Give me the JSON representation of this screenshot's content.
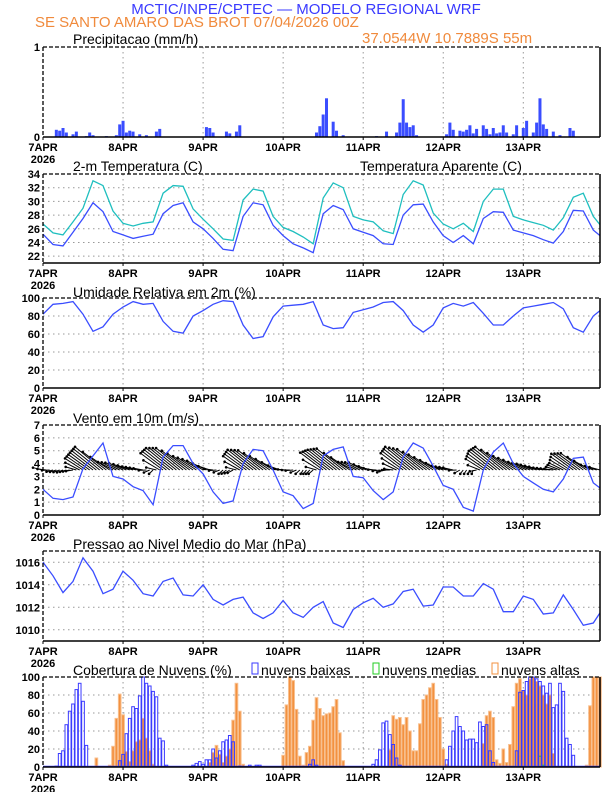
{
  "header": {
    "title": "MCTIC/INPE/CPTEC — MODELO REGIONAL WRF",
    "location": "SE SANTO AMARO DAS BROT   07/04/2026 00Z",
    "coords": "37.0544W 10.7889S 55m"
  },
  "colors": {
    "title": "#3a3aff",
    "location": "#f08a3c",
    "line": "#3a4dff",
    "apparent": "#1fbfbf",
    "low": "#3a3aff",
    "medium": "#22cc22",
    "high": "#f3913f",
    "vector": "#000000"
  },
  "x_tick_labels": [
    "7APR",
    "8APR",
    "9APR",
    "10APR",
    "11APR",
    "12APR",
    "13APR"
  ],
  "x_year_label": "2026",
  "x_range": [
    "07APR00Z",
    "13APR23Z"
  ],
  "legend": {
    "low": "nuvens baixas",
    "medium": "nuvens medias",
    "high": "nuvens altas"
  },
  "chart_data": [
    {
      "type": "bar",
      "title": "Precipitacao (mm/h)",
      "ylim": [
        0,
        1
      ],
      "yticks": [
        0,
        1
      ],
      "grid": true,
      "hourly": {
        "07APR": [
          0,
          0,
          0,
          0,
          0.08,
          0.07,
          0.1,
          0.05,
          0,
          0.03,
          0.06,
          0,
          0,
          0.01,
          0.05,
          0.02,
          0,
          0,
          0,
          0.01,
          0,
          0,
          0.02,
          0.14
        ],
        "08APR": [
          0.18,
          0.05,
          0.07,
          0.06,
          0,
          0.03,
          0,
          0.02,
          0,
          0,
          0.06,
          0.09,
          0,
          0,
          0,
          0,
          0,
          0,
          0,
          0,
          0,
          0,
          0,
          0
        ],
        "09APR": [
          0,
          0.11,
          0.1,
          0.05,
          0,
          0,
          0,
          0.06,
          0.04,
          0,
          0.06,
          0.13,
          0,
          0,
          0,
          0,
          0,
          0,
          0,
          0,
          0,
          0,
          0,
          0
        ],
        "10APR": [
          0,
          0,
          0,
          0,
          0,
          0,
          0,
          0,
          0,
          0,
          0.05,
          0.12,
          0.25,
          0.43,
          0,
          0.17,
          0.07,
          0,
          0.02,
          0,
          0,
          0,
          0,
          0
        ],
        "11APR": [
          0,
          0,
          0,
          0,
          0.01,
          0,
          0,
          0.06,
          0,
          0,
          0.05,
          0.16,
          0.42,
          0.16,
          0.11,
          0.13,
          0.02,
          0,
          0,
          0,
          0,
          0,
          0,
          0
        ],
        "12APR": [
          0,
          0.03,
          0.16,
          0.08,
          0,
          0.07,
          0.06,
          0.08,
          0.13,
          0.04,
          0.09,
          0,
          0.13,
          0.09,
          0.03,
          0.1,
          0.04,
          0.05,
          0.13,
          0.05,
          0,
          0.03,
          0.13,
          0
        ],
        "13APR": [
          0.1,
          0.18,
          0,
          0.05,
          0.16,
          0.43,
          0.14,
          0.09,
          0,
          0.06,
          0,
          0.02,
          0,
          0,
          0.1,
          0.07,
          0,
          0,
          0,
          0,
          0,
          0,
          0,
          0
        ]
      }
    },
    {
      "type": "line",
      "title": "2-m Temperatura (C)",
      "ylim": [
        21,
        34
      ],
      "yticks": [
        22,
        24,
        26,
        28,
        30,
        32,
        34
      ],
      "grid": true,
      "x": [
        "07APR00Z",
        "07APR03Z",
        "07APR06Z",
        "07APR09Z",
        "07APR12Z",
        "07APR15Z",
        "07APR18Z",
        "07APR21Z",
        "08APR00Z",
        "08APR03Z",
        "08APR06Z",
        "08APR09Z",
        "08APR12Z",
        "08APR15Z",
        "08APR18Z",
        "08APR21Z",
        "09APR00Z",
        "09APR03Z",
        "09APR06Z",
        "09APR09Z",
        "09APR12Z",
        "09APR15Z",
        "09APR18Z",
        "09APR21Z",
        "10APR00Z",
        "10APR03Z",
        "10APR06Z",
        "10APR09Z",
        "10APR12Z",
        "10APR15Z",
        "10APR18Z",
        "10APR21Z",
        "11APR00Z",
        "11APR03Z",
        "11APR06Z",
        "11APR09Z",
        "11APR12Z",
        "11APR15Z",
        "11APR18Z",
        "11APR21Z",
        "12APR00Z",
        "12APR03Z",
        "12APR06Z",
        "12APR09Z",
        "12APR12Z",
        "12APR15Z",
        "12APR18Z",
        "12APR21Z",
        "13APR00Z",
        "13APR03Z",
        "13APR06Z",
        "13APR09Z",
        "13APR12Z",
        "13APR15Z",
        "13APR18Z",
        "13APR21Z",
        "13APR23Z"
      ],
      "series": [
        {
          "values": [
            25.2,
            23.7,
            23.5,
            25.5,
            27.5,
            29.8,
            28.5,
            25.6,
            25.1,
            24.6,
            24.9,
            25.2,
            28.2,
            29.4,
            29.8,
            27.0,
            26.0,
            24.6,
            23.0,
            22.8,
            27.8,
            29.8,
            29.5,
            26.5,
            25.0,
            23.8,
            23.2,
            22.5,
            28.2,
            29.4,
            28.8,
            26.0,
            25.5,
            25.0,
            23.8,
            23.7,
            28.0,
            29.5,
            29.6,
            27.0,
            25.0,
            24.0,
            25.0,
            23.8,
            27.5,
            28.5,
            28.4,
            25.8,
            25.4,
            25.0,
            24.4,
            23.9,
            25.6,
            28.7,
            28.6,
            25.8,
            25.0
          ]
        },
        {
          "name": "Temperatura Aparente (C)",
          "values": [
            26.7,
            25.4,
            25.1,
            27.0,
            29.0,
            33.0,
            32.3,
            28.6,
            26.8,
            26.4,
            26.8,
            27.0,
            31.2,
            32.3,
            32.2,
            28.9,
            27.4,
            26.0,
            24.5,
            24.3,
            30.2,
            31.8,
            31.5,
            27.8,
            26.2,
            25.6,
            24.8,
            23.8,
            30.5,
            32.7,
            32.0,
            27.8,
            27.3,
            27.0,
            25.7,
            25.3,
            31.0,
            33.0,
            32.4,
            28.3,
            26.7,
            26.0,
            26.8,
            25.6,
            30.0,
            31.8,
            31.8,
            27.8,
            27.3,
            26.9,
            26.5,
            25.8,
            27.6,
            30.6,
            31.2,
            27.8,
            26.6
          ]
        }
      ]
    },
    {
      "type": "line",
      "title": "Umidade Relativa em 2m (%)",
      "ylim": [
        0,
        100
      ],
      "yticks": [
        0,
        20,
        40,
        60,
        80,
        100
      ],
      "grid": true,
      "series": [
        {
          "values": [
            82,
            93,
            94,
            96,
            82,
            63,
            68,
            82,
            90,
            96,
            93,
            94,
            74,
            63,
            61,
            80,
            86,
            93,
            97,
            96,
            70,
            55,
            57,
            79,
            91,
            92,
            93,
            96,
            70,
            66,
            67,
            84,
            87,
            90,
            95,
            96,
            86,
            70,
            62,
            70,
            89,
            94,
            91,
            95,
            83,
            70,
            70,
            80,
            89,
            91,
            93,
            95,
            88,
            67,
            62,
            80,
            86
          ]
        }
      ]
    },
    {
      "type": "line",
      "title": "Vento em 10m (m/s)",
      "ylim": [
        0,
        7
      ],
      "yticks": [
        0,
        1,
        2,
        3,
        4,
        5,
        6,
        7
      ],
      "grid": true,
      "series": [
        {
          "values": [
            2.0,
            1.3,
            1.2,
            1.4,
            3.6,
            4.6,
            5.6,
            3.0,
            2.8,
            2.2,
            1.9,
            0.8,
            4.5,
            5.4,
            5.4,
            4.0,
            3.2,
            1.8,
            0.9,
            1.1,
            4.0,
            5.1,
            5.0,
            3.5,
            1.8,
            1.5,
            0.5,
            0.9,
            4.6,
            5.1,
            5.3,
            3.0,
            2.9,
            1.9,
            1.2,
            1.8,
            4.5,
            5.6,
            5.2,
            3.8,
            2.3,
            2.0,
            0.6,
            0.3,
            3.5,
            4.9,
            5.6,
            4.0,
            3.0,
            2.5,
            2.0,
            1.8,
            2.8,
            4.4,
            4.5,
            2.5,
            2.1
          ]
        }
      ]
    },
    {
      "type": "line",
      "title": "Pressao ao Nivel Medio do Mar (hPa)",
      "ylim": [
        1009,
        1017
      ],
      "yticks": [
        1010,
        1012,
        1014,
        1016
      ],
      "grid": true,
      "series": [
        {
          "values": [
            1016.0,
            1014.8,
            1013.3,
            1014.3,
            1016.4,
            1015.2,
            1013.2,
            1013.6,
            1015.2,
            1014.4,
            1013.2,
            1013.0,
            1014.3,
            1014.6,
            1013.1,
            1013.0,
            1014.0,
            1012.7,
            1012.2,
            1012.7,
            1012.9,
            1011.5,
            1011.0,
            1011.5,
            1012.6,
            1011.5,
            1011.1,
            1012.0,
            1012.5,
            1010.6,
            1010.2,
            1011.8,
            1012.4,
            1012.8,
            1012.0,
            1012.3,
            1013.4,
            1013.6,
            1012.1,
            1012.2,
            1013.8,
            1013.8,
            1013.0,
            1013.0,
            1014.1,
            1013.6,
            1011.6,
            1011.6,
            1013.0,
            1012.7,
            1011.4,
            1011.5,
            1013.1,
            1011.8,
            1010.4,
            1010.6,
            1011.5
          ]
        }
      ]
    },
    {
      "type": "bar",
      "title": "Cobertura de Nuvens (%)",
      "ylim": [
        0,
        100
      ],
      "yticks": [
        0,
        20,
        40,
        60,
        80,
        100
      ],
      "grid": true,
      "series": [
        {
          "name": "nuvens altas",
          "hourly": {
            "07APR": [
              0,
              0,
              0,
              0,
              0,
              0,
              0,
              0,
              0,
              0,
              0,
              0,
              0,
              0,
              0,
              0,
              10,
              0,
              0,
              0,
              2,
              23,
              54,
              81
            ],
            "08APR": [
              58,
              17,
              6,
              18,
              28,
              30,
              54,
              32,
              18,
              3,
              0,
              0,
              0,
              0,
              0,
              0,
              0,
              0,
              0,
              0,
              0,
              0,
              0,
              0
            ],
            "09APR": [
              0,
              0,
              5,
              16,
              24,
              14,
              5,
              12,
              20,
              52,
              93,
              62,
              3,
              0,
              0,
              0,
              0,
              0,
              0,
              0,
              0,
              0,
              0,
              0
            ],
            "10APR": [
              13,
              69,
              100,
              96,
              64,
              12,
              2,
              16,
              23,
              52,
              77,
              65,
              57,
              59,
              60,
              67,
              75,
              38,
              7,
              0,
              0,
              0,
              0,
              0
            ],
            "11APR": [
              0,
              0,
              0,
              0,
              0,
              0,
              0,
              0,
              19,
              57,
              53,
              55,
              47,
              55,
              40,
              18,
              18,
              48,
              75,
              80,
              88,
              93,
              75,
              55
            ],
            "12APR": [
              20,
              3,
              0,
              0,
              0,
              0,
              0,
              0,
              0,
              0,
              0,
              0,
              26,
              57,
              62,
              55,
              8,
              4,
              20,
              5,
              25,
              67,
              93,
              98
            ],
            "13APR": [
              85,
              80,
              98,
              100,
              95,
              90,
              80,
              70,
              80,
              15,
              0,
              0,
              0,
              0,
              0,
              0,
              0,
              0,
              0,
              2,
              68,
              100,
              100,
              100
            ]
          }
        },
        {
          "name": "nuvens medias",
          "hourly": {
            "13APR": [
              0,
              0,
              0,
              0,
              0,
              12,
              2,
              0,
              0,
              0,
              0,
              0,
              0,
              0,
              0,
              0,
              0,
              0,
              0,
              0,
              0,
              0,
              0,
              0
            ]
          }
        },
        {
          "name": "nuvens baixas",
          "hourly": {
            "07APR": [
              0,
              0,
              0,
              0,
              1,
              15,
              18,
              47,
              62,
              70,
              86,
              93,
              73,
              24,
              0,
              0,
              0,
              0,
              0,
              0,
              0,
              0,
              0,
              7
            ],
            "08APR": [
              14,
              37,
              54,
              67,
              65,
              79,
              100,
              93,
              90,
              84,
              78,
              32,
              29,
              2,
              0,
              0,
              0,
              0,
              0,
              0,
              0,
              2,
              4,
              6
            ],
            "09APR": [
              3,
              8,
              8,
              20,
              10,
              18,
              28,
              30,
              35,
              28,
              0,
              1,
              0,
              0,
              2,
              0,
              2,
              2,
              0,
              0,
              0,
              0,
              0,
              0
            ],
            "10APR": [
              0,
              0,
              0,
              0,
              0,
              0,
              0,
              0,
              3,
              8,
              2,
              0,
              0,
              0,
              0,
              0,
              0,
              0,
              0,
              0,
              0,
              0,
              0,
              0
            ],
            "11APR": [
              0,
              0,
              0,
              3,
              8,
              19,
              49,
              51,
              36,
              25,
              10,
              2,
              0,
              0,
              0,
              0,
              0,
              0,
              0,
              0,
              0,
              0,
              0,
              0
            ],
            "12APR": [
              0,
              8,
              23,
              40,
              56,
              45,
              40,
              30,
              31,
              31,
              27,
              50,
              45,
              47,
              18,
              5,
              0,
              0,
              0,
              0,
              0,
              0,
              18,
              83
            ],
            "13APR": [
              85,
              95,
              100,
              100,
              98,
              95,
              90,
              82,
              93,
              66,
              69,
              93,
              84,
              32,
              25,
              13,
              0,
              0,
              0,
              0,
              0,
              0,
              0,
              0
            ]
          }
        }
      ]
    }
  ]
}
